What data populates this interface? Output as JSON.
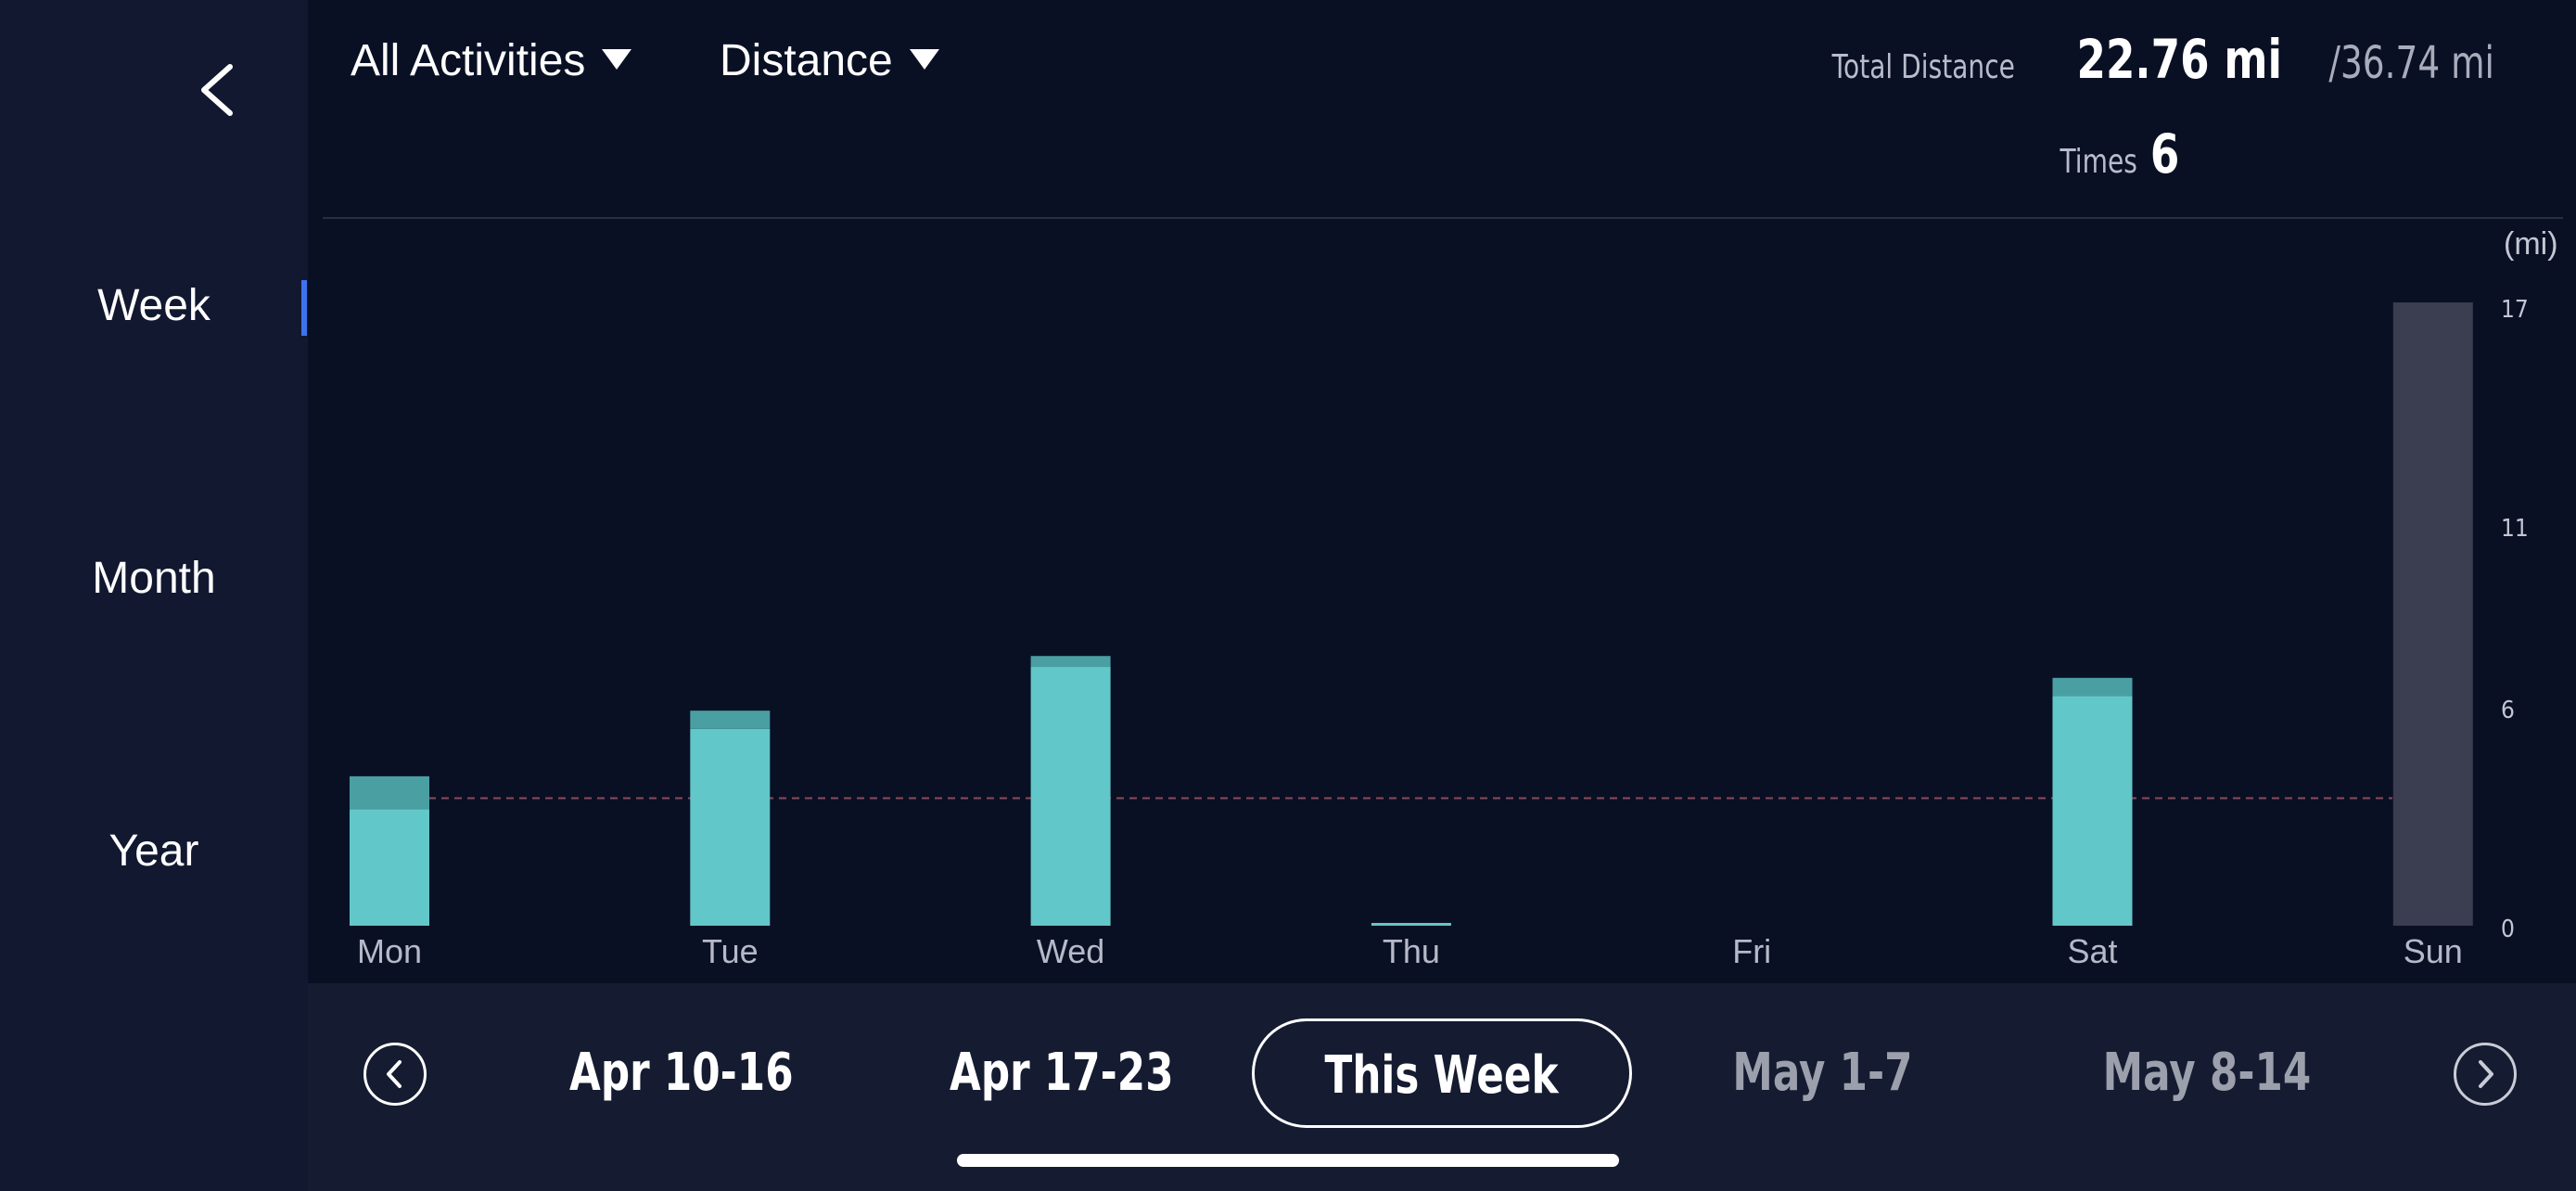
{
  "sidebar": {
    "back_icon": "chevron-left-icon",
    "periods": [
      "Week",
      "Month",
      "Year"
    ],
    "selected_period": "Week",
    "indicator_color": "#3f72f0"
  },
  "header": {
    "activity_filter": "All Activities",
    "metric_filter": "Distance",
    "total_distance_label": "Total Distance",
    "total_distance_value": "22.76 mi",
    "total_distance_goal": "/36.74 mi",
    "times_label": "Times",
    "times_value": "6"
  },
  "week_nav": {
    "prev_icon": "chevron-left-circle-icon",
    "next_icon": "chevron-right-circle-icon",
    "weeks": [
      {
        "label": "Apr 10-16",
        "state": "past"
      },
      {
        "label": "Apr 17-23",
        "state": "past"
      },
      {
        "label": "This Week",
        "state": "current"
      },
      {
        "label": "May 1-7",
        "state": "future"
      },
      {
        "label": "May 8-14",
        "state": "future"
      }
    ]
  },
  "chart_data": {
    "type": "bar",
    "stacked": true,
    "categories": [
      "Mon",
      "Tue",
      "Wed",
      "Thu",
      "Fri",
      "Sat",
      "Sun"
    ],
    "series": [
      {
        "values": [
          3.2,
          5.4,
          7.1,
          0.05,
          0,
          6.3,
          0
        ],
        "color": "#62c7c8"
      },
      {
        "values": [
          0.9,
          0.5,
          0.3,
          0,
          0,
          0.5,
          0
        ],
        "color": "#4a9fa3"
      },
      {
        "values": [
          0,
          0,
          0,
          0,
          0,
          0,
          17.1
        ],
        "color": "#3a3e50"
      }
    ],
    "yunit": "(mi)",
    "yticks": [
      0,
      6,
      11,
      17
    ],
    "ylim": [
      0,
      17
    ],
    "reference_line": {
      "value": 3.5,
      "style": "dashed",
      "color": "#8a4a5c"
    },
    "grid": false,
    "legend": "none"
  }
}
